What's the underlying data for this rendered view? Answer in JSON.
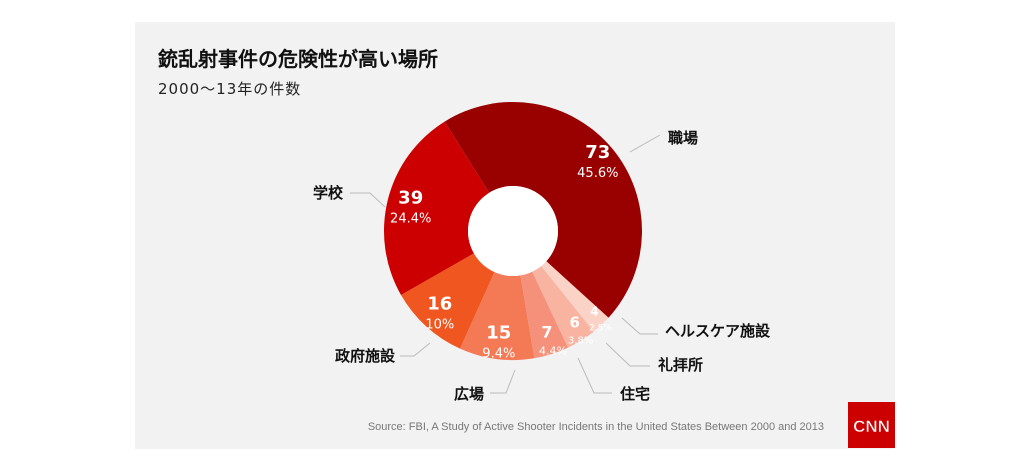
{
  "chart_data": {
    "type": "pie",
    "donut": true,
    "title": "銃乱射事件の危険性が高い場所",
    "subtitle": "2000〜13年の件数",
    "categories": [
      "職場",
      "ヘルスケア施設",
      "礼拝所",
      "住宅",
      "広場",
      "政府施設",
      "学校"
    ],
    "values": [
      73,
      4,
      6,
      7,
      15,
      16,
      39
    ],
    "percent_labels": [
      "45.6%",
      "2.5%",
      "3.8%",
      "4.4%",
      "9.4%",
      "10%",
      "24.4%"
    ],
    "colors": [
      "#990000",
      "#fbd2c6",
      "#f8b4a1",
      "#f5917a",
      "#f47a56",
      "#f0561f",
      "#cc0000"
    ],
    "legend": "none (direct labels with leader lines)"
  },
  "source": "Source: FBI, A Study of Active Shooter Incidents in the United States Between 2000 and 2013",
  "logo": "CNN"
}
